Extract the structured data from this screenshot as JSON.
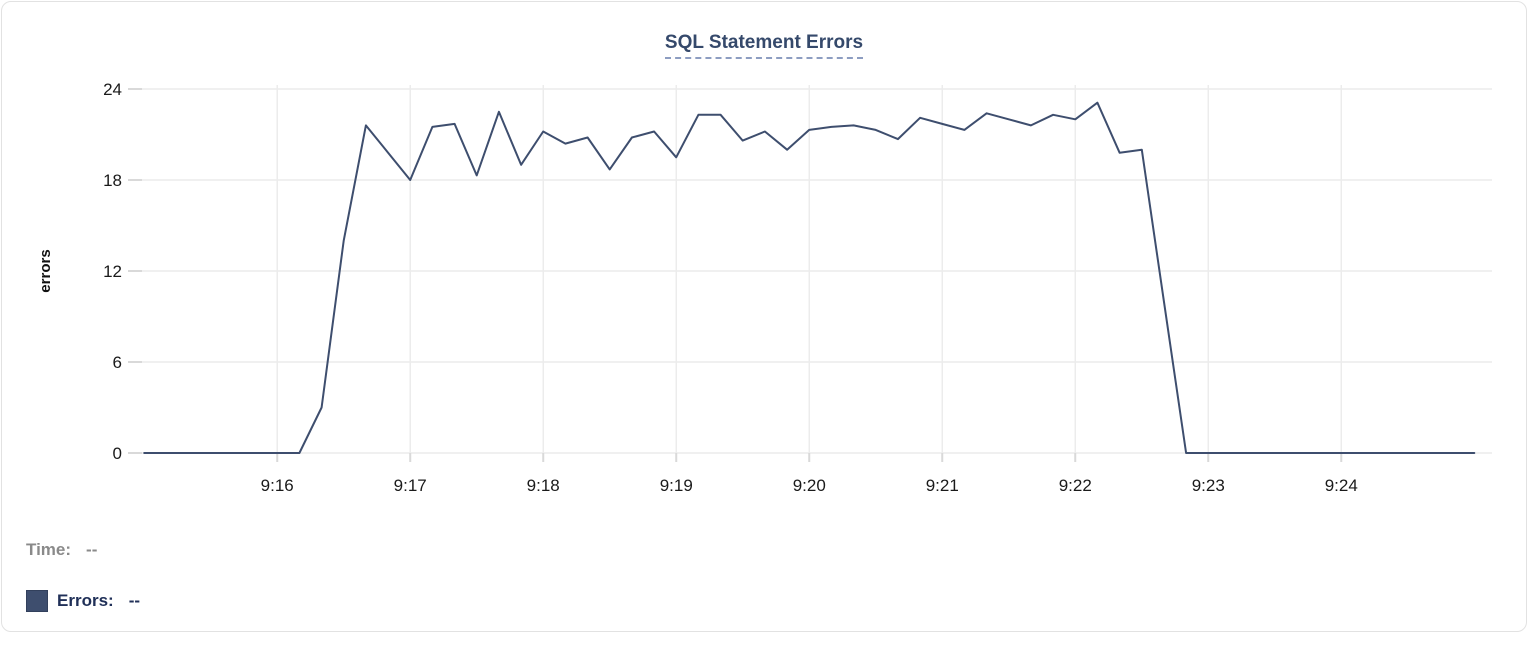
{
  "chart_data": {
    "type": "line",
    "title": "SQL Statement Errors",
    "xlabel": "",
    "ylabel": "errors",
    "grid": true,
    "legend_position": "bottom-left",
    "ylim": [
      0,
      24
    ],
    "y_ticks": [
      0,
      6,
      12,
      18,
      24
    ],
    "x_tick_labels": [
      "9:16",
      "9:17",
      "9:18",
      "9:19",
      "9:20",
      "9:21",
      "9:22",
      "9:23",
      "9:24"
    ],
    "x_domain": [
      "9:14:59",
      "9:25:08"
    ],
    "x_start": "9:15:00",
    "x_interval_seconds": 10,
    "series": [
      {
        "name": "Errors",
        "color": "#3e4e6e",
        "values": [
          0,
          0,
          0,
          0,
          0,
          0,
          0,
          0,
          3,
          14,
          21.6,
          19.8,
          18,
          21.5,
          21.7,
          18.3,
          22.5,
          19,
          21.2,
          20.4,
          20.8,
          18.7,
          20.8,
          21.2,
          19.5,
          22.3,
          22.3,
          20.6,
          21.2,
          20,
          21.3,
          21.5,
          21.6,
          21.3,
          20.7,
          22.1,
          21.7,
          21.3,
          22.4,
          22,
          21.6,
          22.3,
          22,
          23.1,
          19.8,
          20,
          10,
          0,
          0,
          0,
          0,
          0,
          0,
          0,
          0,
          0,
          0,
          0,
          0,
          0,
          0
        ]
      }
    ]
  },
  "legend": {
    "time_label": "Time:",
    "time_value": "--",
    "errors_label": "Errors:",
    "errors_value": "--"
  },
  "colors": {
    "line": "#3e4e6e",
    "title": "#35496b",
    "title_underline": "#8d9dc1",
    "legend_time": "#8a8a8a",
    "legend_errors": "#203058",
    "tick_label": "#1a1a1a",
    "gridline": "#ececec",
    "tick_mark": "#d9d9d9"
  }
}
